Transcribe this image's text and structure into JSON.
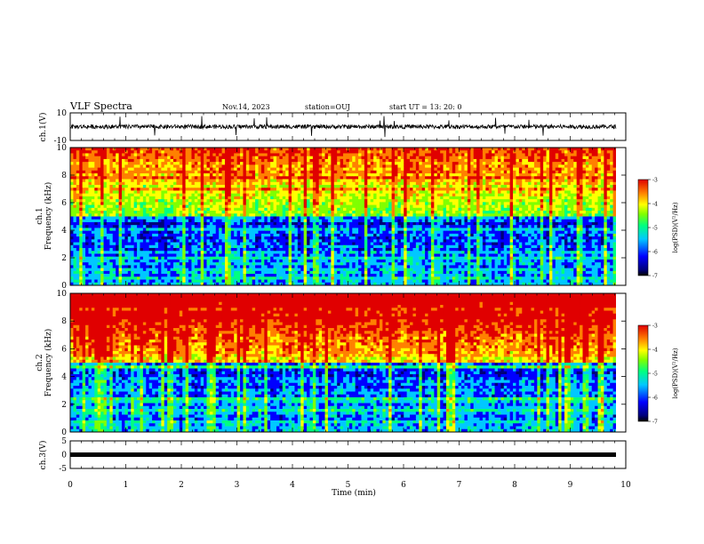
{
  "header": {
    "title": "VLF Spectra",
    "date": "Nov.14, 2023",
    "station": "station=OUJ",
    "start_ut": "start  UT =   13: 20: 0"
  },
  "chart_data": [
    {
      "type": "line",
      "ylabel": "ch.1(V)",
      "ylim": [
        -10,
        10
      ],
      "yticks": [
        "10",
        "-10"
      ],
      "xlim": [
        0,
        10
      ],
      "note": "dense broadband waveform centred near 0 V"
    },
    {
      "type": "heatmap",
      "ylabel": "ch.1\nFrequency (kHz)",
      "ylim": [
        0,
        10
      ],
      "yticks": [
        "0",
        "2",
        "4",
        "6",
        "8",
        "10"
      ],
      "xlim": [
        0,
        10
      ],
      "colorbar": {
        "label": "log(PSD)(V²/Hz)",
        "range": [
          -7,
          -3
        ],
        "ticks": [
          "-3",
          "-4",
          "-5",
          "-6",
          "-7"
        ]
      }
    },
    {
      "type": "heatmap",
      "ylabel": "ch.2\nFrequency (kHz)",
      "ylim": [
        0,
        10
      ],
      "yticks": [
        "0",
        "2",
        "4",
        "6",
        "8",
        "10"
      ],
      "xlim": [
        0,
        10
      ],
      "colorbar": {
        "label": "log(PSD)(V²/Hz)",
        "range": [
          -7,
          -3
        ],
        "ticks": [
          "-3",
          "-4",
          "-5",
          "-6",
          "-7"
        ]
      }
    },
    {
      "type": "line",
      "ylabel": "ch.3(V)",
      "ylim": [
        -5,
        5
      ],
      "yticks": [
        "5",
        "0",
        "-5"
      ],
      "xlim": [
        0,
        10
      ],
      "note": "flat trace near -1 V"
    }
  ],
  "xaxis": {
    "label": "Time (min)",
    "ticks": [
      "0",
      "1",
      "2",
      "3",
      "4",
      "5",
      "6",
      "7",
      "8",
      "9",
      "10"
    ]
  },
  "colors": {
    "cmap": [
      "#00007a",
      "#0000ff",
      "#00c8ff",
      "#00ff80",
      "#80ff00",
      "#ffff00",
      "#ff8000",
      "#e00000"
    ]
  }
}
